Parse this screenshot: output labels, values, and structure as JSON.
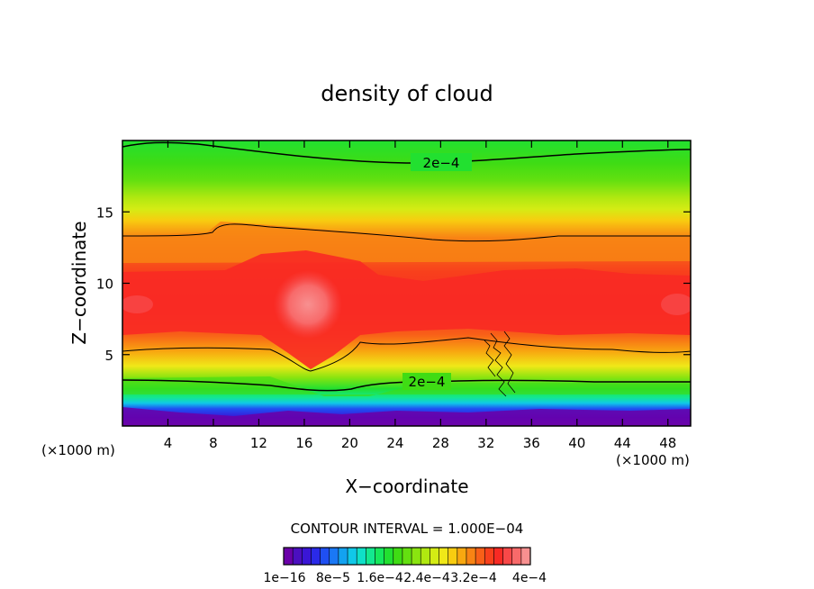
{
  "chart_data": {
    "type": "heatmap",
    "title": "density of cloud",
    "xlabel": "X−coordinate",
    "ylabel": "Z−coordinate",
    "x_units": "(×1000 m)",
    "xlim": [
      0,
      50
    ],
    "ylim": [
      0,
      20
    ],
    "x_ticks": [
      4,
      8,
      12,
      16,
      20,
      24,
      28,
      32,
      36,
      40,
      44,
      48
    ],
    "y_ticks": [
      5,
      10,
      15
    ],
    "contour_interval_text": "CONTOUR INTERVAL = 1.000E−04",
    "contour_labels": [
      {
        "text": "2e−4",
        "x": 27,
        "z": 18.5
      },
      {
        "text": "2e−4",
        "x": 26,
        "z": 3.1
      }
    ],
    "colorbar": {
      "labels": [
        "1e−16",
        "8e−5",
        "1.6e−4",
        "2.4e−4",
        "3.2e−4",
        "4e−4"
      ],
      "colors": [
        "#6a00a8",
        "#4b0fbf",
        "#3a16d6",
        "#2a2ae8",
        "#1f4ff2",
        "#1a78f5",
        "#13a2f0",
        "#10c8e8",
        "#0fe0c8",
        "#13e890",
        "#16e85c",
        "#22e030",
        "#3fdc14",
        "#64e010",
        "#8ae410",
        "#b0e810",
        "#d4ec14",
        "#f0e818",
        "#f8cc10",
        "#f8a810",
        "#f88414",
        "#f86018",
        "#f8401c",
        "#f82a24",
        "#f84848",
        "#f86a6a",
        "#f89090"
      ]
    }
  }
}
